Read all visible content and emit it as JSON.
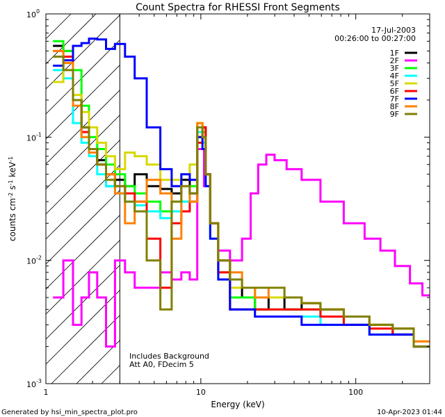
{
  "chart_data": {
    "type": "line",
    "title": "Count Spectra for RHESSI Front Segments",
    "xlabel": "Energy (keV)",
    "ylabel": "counts cm-2 s-1 keV-1",
    "ylabel_parts": [
      "counts cm",
      "-2",
      " s",
      "-1",
      " keV",
      "-1"
    ],
    "x_scale": "log",
    "y_scale": "log",
    "xlim": [
      1,
      300
    ],
    "ylim": [
      0.001,
      1
    ],
    "x_ticks": [
      {
        "value": 1,
        "label": "1"
      },
      {
        "value": 10,
        "label": "10"
      },
      {
        "value": 100,
        "label": "100"
      }
    ],
    "y_ticks": [
      {
        "value": 1,
        "label": "10",
        "exp": "0"
      },
      {
        "value": 0.1,
        "label": "10",
        "exp": "-1"
      },
      {
        "value": 0.01,
        "label": "10",
        "exp": "-2"
      },
      {
        "value": 0.001,
        "label": "10",
        "exp": "-3"
      }
    ],
    "date": "17-Jul-2003",
    "time_range": "00:26:00 to 00:27:00",
    "legend_position": "top-right",
    "shaded_region_keV": [
      1,
      3
    ],
    "annotations": [
      "Includes Background",
      "Att A0, FDecim 5"
    ],
    "footer_left": "Generated by hsi_min_spectra_plot.pro",
    "footer_right": "10-Apr-2023 01:44",
    "series": [
      {
        "name": "1F",
        "color": "#000000",
        "x": [
          1.2,
          1.4,
          1.6,
          1.8,
          2.0,
          2.3,
          2.6,
          3.0,
          3.5,
          4.0,
          5.0,
          6.0,
          7.0,
          8.0,
          9.0,
          10.0,
          10.5,
          11.0,
          12.0,
          14.0,
          17.0,
          20.0,
          25.0,
          30.0,
          40.0,
          50.0,
          70.0,
          100.0,
          150.0,
          200.0,
          280.0
        ],
        "y": [
          0.55,
          0.5,
          0.2,
          0.12,
          0.08,
          0.065,
          0.04,
          0.045,
          0.04,
          0.05,
          0.04,
          0.038,
          0.035,
          0.045,
          0.035,
          0.1,
          0.12,
          0.05,
          0.02,
          0.01,
          0.006,
          0.005,
          0.004,
          0.005,
          0.004,
          0.0045,
          0.004,
          0.0035,
          0.003,
          0.0025,
          0.002
        ]
      },
      {
        "name": "2F",
        "color": "#ff00ff",
        "x": [
          1.2,
          1.4,
          1.6,
          1.8,
          2.0,
          2.3,
          2.6,
          3.0,
          3.5,
          4.0,
          5.0,
          6.0,
          7.0,
          8.0,
          9.0,
          10.0,
          11.0,
          12.0,
          14.0,
          17.0,
          20.0,
          22.0,
          25.0,
          28.0,
          32.0,
          40.0,
          50.0,
          70.0,
          100.0,
          130.0,
          160.0,
          200.0,
          250.0,
          290.0
        ],
        "y": [
          0.005,
          0.01,
          0.003,
          0.005,
          0.008,
          0.005,
          0.002,
          0.01,
          0.008,
          0.006,
          0.006,
          0.008,
          0.007,
          0.008,
          0.007,
          0.08,
          0.04,
          0.02,
          0.012,
          0.01,
          0.015,
          0.035,
          0.06,
          0.072,
          0.065,
          0.055,
          0.045,
          0.03,
          0.02,
          0.015,
          0.012,
          0.009,
          0.0065,
          0.0052
        ]
      },
      {
        "name": "3F",
        "color": "#00ff00",
        "x": [
          1.2,
          1.4,
          1.6,
          1.8,
          2.0,
          2.3,
          2.6,
          3.0,
          3.5,
          4.0,
          5.0,
          6.0,
          7.0,
          8.0,
          9.0,
          10.0,
          10.5,
          11.0,
          12.0,
          14.0,
          17.0,
          20.0,
          25.0,
          30.0,
          40.0,
          50.0,
          70.0,
          100.0,
          150.0,
          200.0,
          280.0
        ],
        "y": [
          0.6,
          0.5,
          0.35,
          0.18,
          0.1,
          0.08,
          0.06,
          0.05,
          0.04,
          0.035,
          0.03,
          0.025,
          0.03,
          0.03,
          0.04,
          0.13,
          0.11,
          0.05,
          0.02,
          0.008,
          0.005,
          0.005,
          0.004,
          0.004,
          0.004,
          0.004,
          0.0035,
          0.003,
          0.003,
          0.0025,
          0.002
        ]
      },
      {
        "name": "4F",
        "color": "#00ffff",
        "x": [
          1.2,
          1.4,
          1.6,
          1.8,
          2.0,
          2.3,
          2.6,
          3.0,
          3.5,
          4.0,
          5.0,
          6.0,
          7.0,
          8.0,
          9.0,
          10.0,
          10.5,
          11.0,
          12.0,
          14.0,
          17.0,
          20.0,
          25.0,
          30.0,
          40.0,
          50.0,
          70.0,
          100.0,
          150.0,
          200.0,
          280.0
        ],
        "y": [
          0.35,
          0.3,
          0.13,
          0.09,
          0.07,
          0.05,
          0.04,
          0.035,
          0.03,
          0.028,
          0.025,
          0.022,
          0.025,
          0.03,
          0.03,
          0.11,
          0.09,
          0.04,
          0.015,
          0.007,
          0.004,
          0.004,
          0.0035,
          0.0035,
          0.0035,
          0.0035,
          0.003,
          0.003,
          0.0025,
          0.0025,
          0.002
        ]
      },
      {
        "name": "5F",
        "color": "#d8d800",
        "x": [
          1.2,
          1.4,
          1.6,
          1.8,
          2.0,
          2.3,
          2.6,
          3.0,
          3.5,
          4.0,
          5.0,
          6.0,
          7.0,
          8.0,
          9.0,
          10.0,
          10.5,
          11.0,
          12.0,
          14.0,
          17.0,
          20.0,
          25.0,
          30.0,
          40.0,
          50.0,
          70.0,
          100.0,
          150.0,
          200.0,
          280.0
        ],
        "y": [
          0.28,
          0.4,
          0.22,
          0.16,
          0.12,
          0.09,
          0.07,
          0.055,
          0.075,
          0.07,
          0.06,
          0.045,
          0.045,
          0.05,
          0.06,
          0.13,
          0.1,
          0.05,
          0.02,
          0.008,
          0.006,
          0.006,
          0.005,
          0.005,
          0.005,
          0.0045,
          0.004,
          0.0035,
          0.003,
          0.0028,
          0.0022
        ]
      },
      {
        "name": "6F",
        "color": "#ff0000",
        "x": [
          1.2,
          1.4,
          1.6,
          1.8,
          2.0,
          2.3,
          2.6,
          3.0,
          3.5,
          4.0,
          5.0,
          6.0,
          7.0,
          8.0,
          9.0,
          10.0,
          10.5,
          11.0,
          12.0,
          14.0,
          17.0,
          20.0,
          25.0,
          30.0,
          40.0,
          50.0,
          70.0,
          100.0,
          150.0,
          200.0,
          280.0
        ],
        "y": [
          0.5,
          0.45,
          0.2,
          0.11,
          0.08,
          0.06,
          0.05,
          0.04,
          0.035,
          0.03,
          0.015,
          0.006,
          0.02,
          0.025,
          0.03,
          0.09,
          0.12,
          0.05,
          0.02,
          0.008,
          0.004,
          0.004,
          0.004,
          0.004,
          0.004,
          0.004,
          0.0035,
          0.003,
          0.0028,
          0.0025,
          0.002
        ]
      },
      {
        "name": "7F",
        "color": "#0000ff",
        "x": [
          1.2,
          1.4,
          1.6,
          1.8,
          2.0,
          2.3,
          2.6,
          3.0,
          3.5,
          4.0,
          5.0,
          6.0,
          7.0,
          8.0,
          9.0,
          10.0,
          10.5,
          11.0,
          12.0,
          14.0,
          17.0,
          20.0,
          25.0,
          30.0,
          40.0,
          50.0,
          70.0,
          100.0,
          150.0,
          200.0,
          280.0
        ],
        "y": [
          0.38,
          0.42,
          0.55,
          0.58,
          0.63,
          0.62,
          0.52,
          0.57,
          0.45,
          0.3,
          0.12,
          0.055,
          0.04,
          0.05,
          0.045,
          0.1,
          0.08,
          0.04,
          0.015,
          0.007,
          0.004,
          0.004,
          0.0035,
          0.0035,
          0.0035,
          0.003,
          0.003,
          0.003,
          0.0025,
          0.0025,
          0.002
        ]
      },
      {
        "name": "8F",
        "color": "#ff8000",
        "x": [
          1.2,
          1.4,
          1.6,
          1.8,
          2.0,
          2.3,
          2.6,
          3.0,
          3.5,
          4.0,
          5.0,
          6.0,
          7.0,
          8.0,
          9.0,
          10.0,
          10.5,
          11.0,
          12.0,
          14.0,
          17.0,
          20.0,
          25.0,
          30.0,
          40.0,
          50.0,
          70.0,
          100.0,
          150.0,
          200.0,
          280.0
        ],
        "y": [
          0.5,
          0.4,
          0.18,
          0.1,
          0.075,
          0.06,
          0.05,
          0.035,
          0.02,
          0.03,
          0.045,
          0.035,
          0.015,
          0.04,
          0.03,
          0.13,
          0.1,
          0.05,
          0.02,
          0.01,
          0.008,
          0.006,
          0.005,
          0.006,
          0.005,
          0.0045,
          0.004,
          0.0035,
          0.003,
          0.0028,
          0.0022
        ]
      },
      {
        "name": "9F",
        "color": "#808000",
        "x": [
          1.2,
          1.4,
          1.6,
          1.8,
          2.0,
          2.3,
          2.6,
          3.0,
          3.5,
          4.0,
          5.0,
          6.0,
          7.0,
          8.0,
          9.0,
          10.0,
          10.5,
          11.0,
          12.0,
          14.0,
          17.0,
          20.0,
          25.0,
          30.0,
          40.0,
          50.0,
          70.0,
          100.0,
          150.0,
          200.0,
          280.0
        ],
        "y": [
          0.45,
          0.35,
          0.2,
          0.12,
          0.08,
          0.06,
          0.045,
          0.04,
          0.03,
          0.025,
          0.01,
          0.004,
          0.03,
          0.04,
          0.035,
          0.12,
          0.1,
          0.05,
          0.02,
          0.01,
          0.007,
          0.006,
          0.006,
          0.006,
          0.005,
          0.0045,
          0.004,
          0.0035,
          0.003,
          0.0028,
          0.002
        ]
      }
    ]
  }
}
